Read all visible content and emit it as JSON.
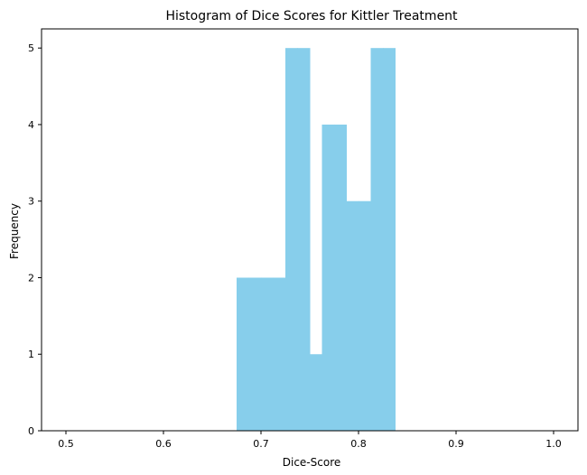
{
  "chart_data": {
    "type": "bar",
    "title": "Histogram of Dice Scores for Kittler Treatment",
    "xlabel": "Dice-Score",
    "ylabel": "Frequency",
    "xlim": [
      0.475,
      1.025
    ],
    "ylim": [
      0,
      5.25
    ],
    "x_ticks": [
      "0.5",
      "0.6",
      "0.7",
      "0.8",
      "0.9",
      "1.0"
    ],
    "y_ticks": [
      "0",
      "1",
      "2",
      "3",
      "4",
      "5"
    ],
    "bin_edges": [
      0.675,
      0.6875,
      0.7,
      0.7125,
      0.725,
      0.7375,
      0.75,
      0.7625,
      0.775,
      0.7875,
      0.8,
      0.8125,
      0.825,
      0.8375
    ],
    "values": [
      2,
      2,
      2,
      2,
      5,
      5,
      1,
      4,
      4,
      3,
      3,
      5,
      5
    ],
    "bar_color": "#87CEEB",
    "grid": false
  }
}
